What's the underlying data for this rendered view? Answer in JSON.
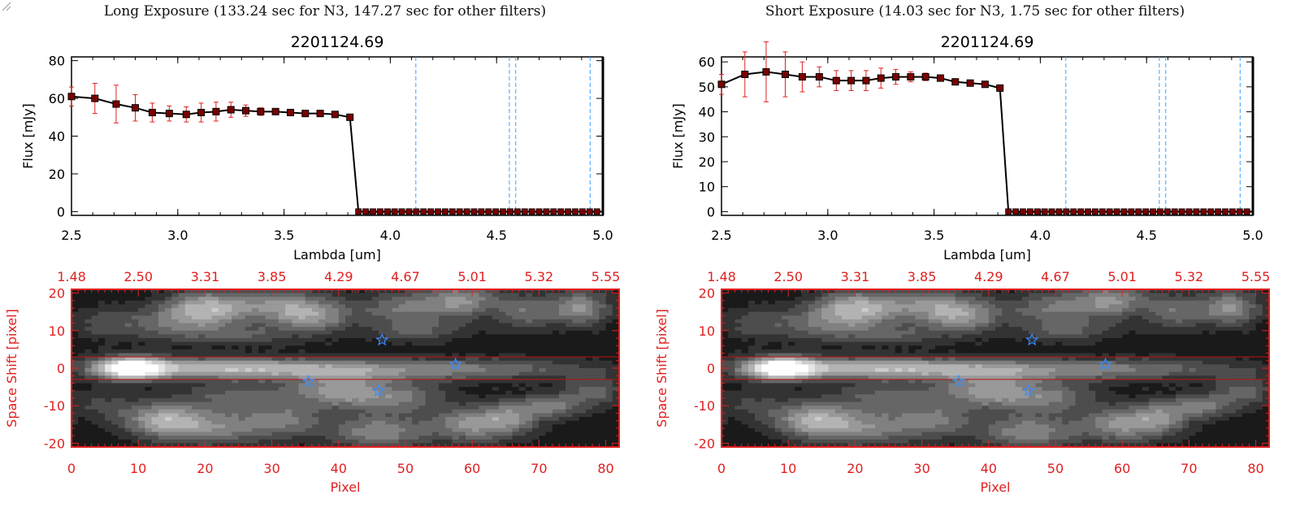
{
  "panels": [
    {
      "title": "Long Exposure (133.24 sec for N3, 147.27 sec for other filters)",
      "chart_data": {
        "type": "line",
        "title": "2201124.69",
        "xlabel": "Lambda [um]",
        "ylabel": "Flux [mJy]",
        "xlim": [
          2.5,
          5.0
        ],
        "ylim": [
          -2,
          82
        ],
        "xticks": [
          "2.5",
          "3.0",
          "3.5",
          "4.0",
          "4.5",
          "5.0"
        ],
        "yticks": [
          "0",
          "20",
          "40",
          "60",
          "80"
        ],
        "ytick_values": [
          0,
          20,
          40,
          60,
          80
        ],
        "series": [
          {
            "x": [
              2.5,
              2.61,
              2.71,
              2.8,
              2.88,
              2.96,
              3.04,
              3.11,
              3.18,
              3.25,
              3.32,
              3.39,
              3.46,
              3.53,
              3.6,
              3.67,
              3.74,
              3.81
            ],
            "y": [
              61,
              60,
              57,
              55,
              52.5,
              52,
              51.5,
              52.5,
              53,
              54,
              53.5,
              53,
              53,
              52.5,
              52,
              52,
              51.5,
              50
            ],
            "yerr": [
              5,
              8,
              10,
              7,
              5,
              4,
              4,
              5,
              5,
              4,
              3,
              2,
              1.5,
              1,
              1,
              1,
              1,
              1
            ],
            "drop_x": 3.85,
            "zero_x_end": 5.0,
            "zero_step": 0.034
          }
        ],
        "colors": {
          "line": "#000000",
          "marker": "#7a0000",
          "errorbar": "#e02020",
          "vline": "#3aa0ff",
          "zero_line": "#ff6060"
        },
        "vlines": [
          4.12,
          4.56,
          4.59,
          4.94
        ]
      },
      "image_panel": {
        "type": "heatmap",
        "top_axis_ticks": [
          "1.48",
          "2.50",
          "3.31",
          "3.85",
          "4.29",
          "4.67",
          "5.01",
          "5.32",
          "5.55"
        ],
        "xlabel": "Pixel",
        "ylabel": "Space Shift [pixel]",
        "xlim": [
          0,
          82
        ],
        "ylim": [
          -21,
          21
        ],
        "xticks": [
          "0",
          "10",
          "20",
          "30",
          "40",
          "50",
          "60",
          "70",
          "80"
        ],
        "yticks": [
          "-20",
          "-10",
          "0",
          "10",
          "20"
        ],
        "ytick_values": [
          -20,
          -10,
          0,
          10,
          20
        ],
        "aperture": [
          -3,
          3
        ],
        "stars": [
          [
            46.5,
            7.5
          ],
          [
            57.5,
            1
          ],
          [
            35.5,
            -3.5
          ],
          [
            46,
            -6
          ]
        ],
        "colors": {
          "axis": "#e02020",
          "star": "#3a8cff"
        }
      }
    },
    {
      "title": "Short Exposure (14.03 sec for N3, 1.75 sec for other filters)",
      "chart_data": {
        "type": "line",
        "title": "2201124.69",
        "xlabel": "Lambda [um]",
        "ylabel": "Flux [mJy]",
        "xlim": [
          2.5,
          5.0
        ],
        "ylim": [
          -1.5,
          62
        ],
        "xticks": [
          "2.5",
          "3.0",
          "3.5",
          "4.0",
          "4.5",
          "5.0"
        ],
        "yticks": [
          "0",
          "10",
          "20",
          "30",
          "40",
          "50",
          "60"
        ],
        "ytick_values": [
          0,
          10,
          20,
          30,
          40,
          50,
          60
        ],
        "series": [
          {
            "x": [
              2.5,
              2.61,
              2.71,
              2.8,
              2.88,
              2.96,
              3.04,
              3.11,
              3.18,
              3.25,
              3.32,
              3.39,
              3.46,
              3.53,
              3.6,
              3.67,
              3.74,
              3.81
            ],
            "y": [
              51,
              55,
              56,
              55,
              54,
              54,
              52.5,
              52.5,
              52.5,
              53.5,
              54,
              54,
              54,
              53.5,
              52,
              51.5,
              51,
              49.5
            ],
            "yerr": [
              4,
              9,
              12,
              9,
              6,
              4,
              4,
              4,
              4,
              4,
              3,
              2,
              1.5,
              1,
              1,
              1,
              1,
              1
            ],
            "drop_x": 3.85,
            "zero_x_end": 5.0,
            "zero_step": 0.034
          }
        ],
        "colors": {
          "line": "#000000",
          "marker": "#7a0000",
          "errorbar": "#e02020",
          "vline": "#3aa0ff",
          "zero_line": "#ff6060"
        },
        "vlines": [
          4.12,
          4.56,
          4.59,
          4.94
        ]
      },
      "image_panel": {
        "type": "heatmap",
        "top_axis_ticks": [
          "1.48",
          "2.50",
          "3.31",
          "3.85",
          "4.29",
          "4.67",
          "5.01",
          "5.32",
          "5.55"
        ],
        "xlabel": "Pixel",
        "ylabel": "Space Shift [pixel]",
        "xlim": [
          0,
          82
        ],
        "ylim": [
          -21,
          21
        ],
        "xticks": [
          "0",
          "10",
          "20",
          "30",
          "40",
          "50",
          "60",
          "70",
          "80"
        ],
        "yticks": [
          "-20",
          "-10",
          "0",
          "10",
          "20"
        ],
        "ytick_values": [
          -20,
          -10,
          0,
          10,
          20
        ],
        "aperture": [
          -3,
          3
        ],
        "stars": [
          [
            46.5,
            7.5
          ],
          [
            57.5,
            1
          ],
          [
            35.5,
            -3.5
          ],
          [
            46,
            -6
          ]
        ],
        "colors": {
          "axis": "#e02020",
          "star": "#3a8cff"
        }
      }
    }
  ]
}
